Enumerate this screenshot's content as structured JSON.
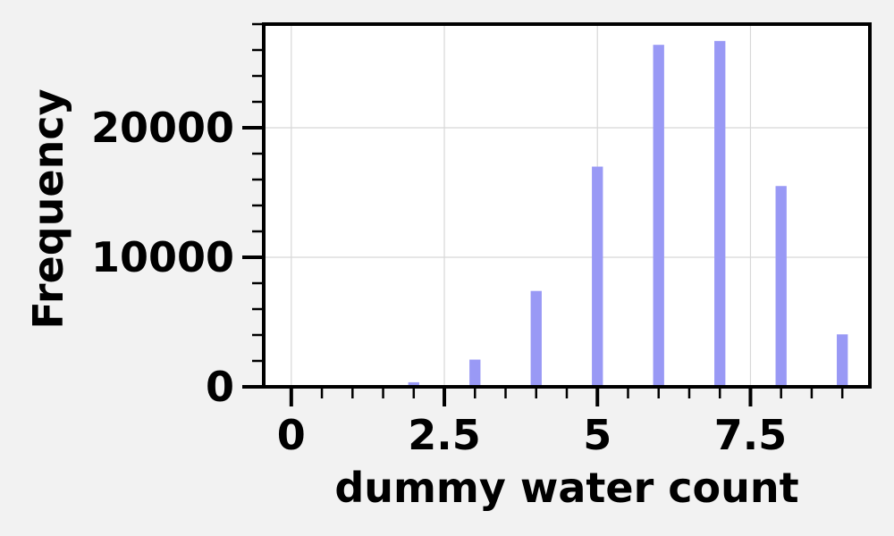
{
  "chart_data": {
    "type": "bar",
    "xlabel": "dummy water count",
    "ylabel": "Frequency",
    "xlim": [
      -0.45,
      9.45
    ],
    "ylim": [
      0,
      28000
    ],
    "x_ticks": [
      0,
      2.5,
      5,
      7.5
    ],
    "x_tick_labels": [
      "0",
      "2.5",
      "5",
      "7.5"
    ],
    "y_ticks": [
      0,
      10000,
      20000
    ],
    "y_tick_labels": [
      "0",
      "10000",
      "20000"
    ],
    "grid": true,
    "bar_color": "#9999f5",
    "bars": [
      {
        "x": 0,
        "value": 0
      },
      {
        "x": 1,
        "value": 0
      },
      {
        "x": 2,
        "value": 350
      },
      {
        "x": 3,
        "value": 2100
      },
      {
        "x": 4,
        "value": 7400
      },
      {
        "x": 5,
        "value": 17000
      },
      {
        "x": 6,
        "value": 26400
      },
      {
        "x": 7,
        "value": 26700
      },
      {
        "x": 8,
        "value": 15500
      },
      {
        "x": 9,
        "value": 4050
      }
    ]
  }
}
